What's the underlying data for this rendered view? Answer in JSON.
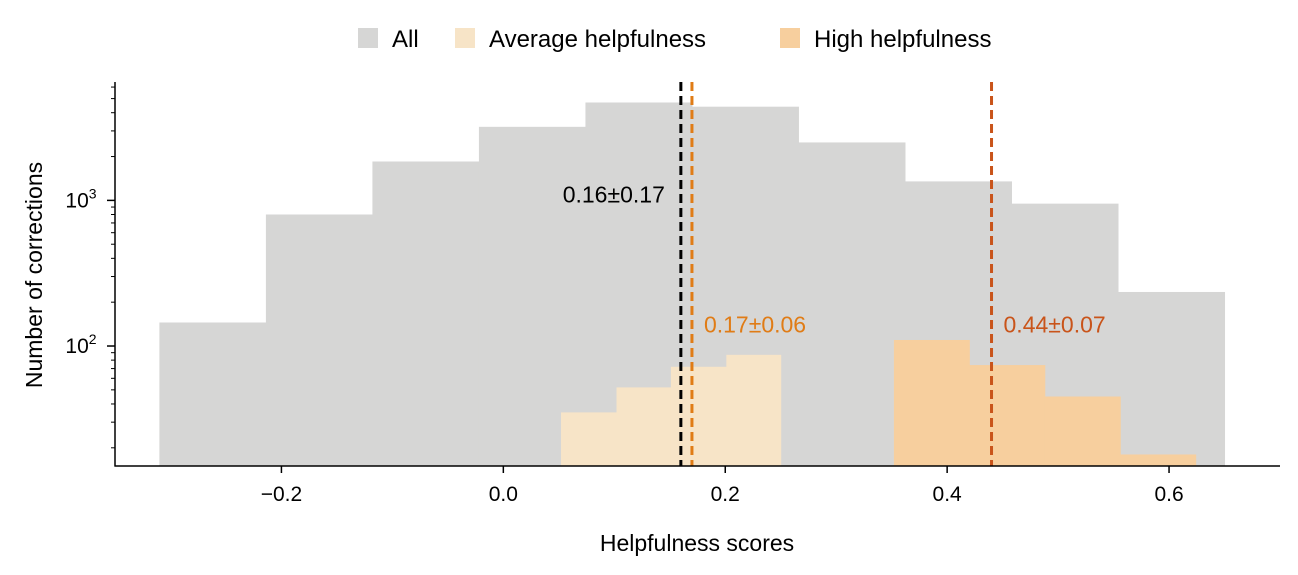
{
  "chart_data": {
    "type": "histogram",
    "xlabel": "Helpfulness scores",
    "ylabel": "Number of corrections",
    "xlim": [
      -0.35,
      0.7
    ],
    "ylim": [
      15,
      6500
    ],
    "y_scale": "log",
    "x_ticks": [
      {
        "value": -0.2,
        "label": "−0.2"
      },
      {
        "value": 0.0,
        "label": "0.0"
      },
      {
        "value": 0.2,
        "label": "0.2"
      },
      {
        "value": 0.4,
        "label": "0.4"
      },
      {
        "value": 0.6,
        "label": "0.6"
      }
    ],
    "y_major_ticks": [
      {
        "value": 100,
        "base": "10",
        "exp": "2"
      },
      {
        "value": 1000,
        "base": "10",
        "exp": "3"
      }
    ],
    "legend": {
      "position": "top-center"
    },
    "series": [
      {
        "name": "All",
        "color": "#d6d6d5",
        "bin_edges": [
          -0.31,
          -0.214,
          -0.118,
          -0.022,
          0.074,
          0.17,
          0.266,
          0.362,
          0.458,
          0.554,
          0.65
        ],
        "counts": [
          145,
          800,
          1850,
          3200,
          4700,
          4400,
          2500,
          1350,
          950,
          235
        ]
      },
      {
        "name": "Average helpfulness",
        "color": "#f7e4c7",
        "bin_edges": [
          0.052,
          0.102,
          0.151,
          0.201,
          0.25
        ],
        "counts": [
          35,
          52,
          72,
          87
        ]
      },
      {
        "name": "High helpfulness",
        "color": "#f7cf9e",
        "bin_edges": [
          0.352,
          0.42,
          0.488,
          0.556,
          0.624
        ],
        "counts": [
          110,
          74,
          45,
          18
        ]
      }
    ],
    "vlines": [
      {
        "x": 0.16,
        "color": "#000000",
        "label": "0.16±0.17",
        "label_side": "left",
        "label_y": 1100
      },
      {
        "x": 0.17,
        "color": "#e07c16",
        "label": "0.17±0.06",
        "label_side": "right",
        "label_y": 140
      },
      {
        "x": 0.44,
        "color": "#c9541a",
        "label": "0.44±0.07",
        "label_side": "right",
        "label_y": 140
      }
    ]
  }
}
